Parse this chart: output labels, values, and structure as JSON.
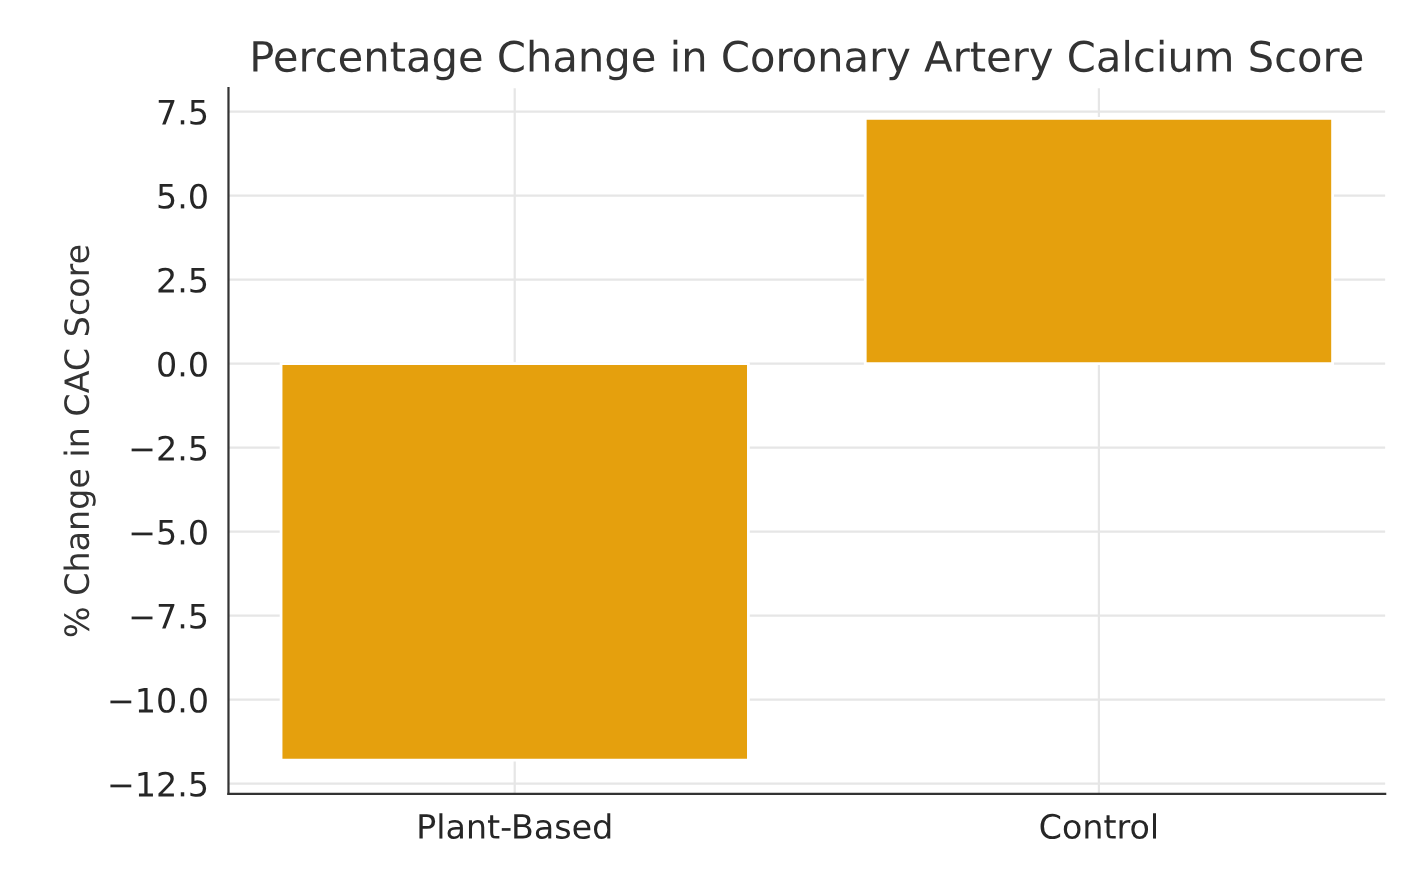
{
  "chart_data": {
    "type": "bar",
    "title": "Percentage Change in Coronary Artery Calcium Score",
    "ylabel": "% Change in CAC Score",
    "categories": [
      "Plant-Based",
      "Control"
    ],
    "values": [
      -11.8,
      7.3
    ],
    "color": "#e5a00d",
    "ylim": [
      -12.8,
      8.2
    ],
    "yticks": [
      {
        "value": -12.5,
        "label": "−12.5"
      },
      {
        "value": -10,
        "label": "−10.0"
      },
      {
        "value": -7.5,
        "label": "−7.5"
      },
      {
        "value": -5,
        "label": "−5.0"
      },
      {
        "value": -2.5,
        "label": "−2.5"
      },
      {
        "value": 0,
        "label": "0.0"
      },
      {
        "value": 2.5,
        "label": "2.5"
      },
      {
        "value": 5,
        "label": "5.0"
      },
      {
        "value": 7.5,
        "label": "7.5"
      }
    ],
    "grid": true
  }
}
